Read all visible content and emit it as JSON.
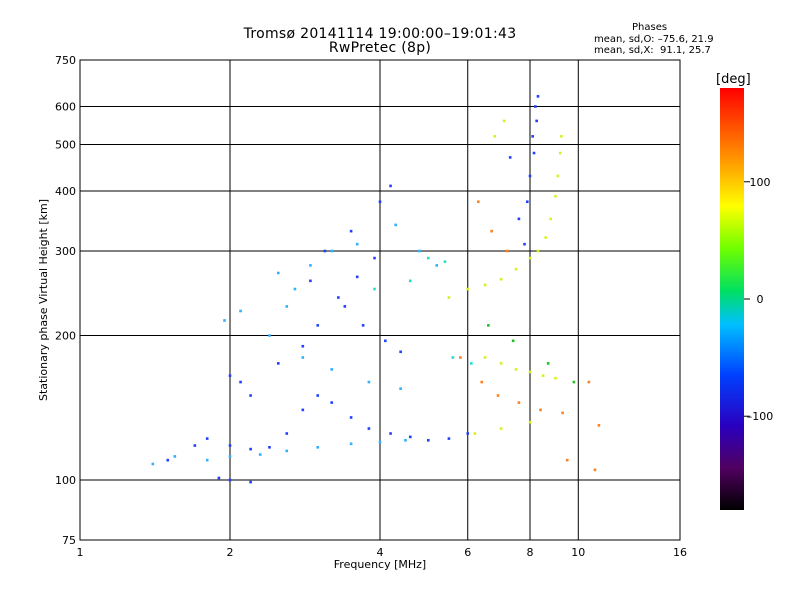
{
  "header": {
    "title_line1": "Tromsø 20141114 19:00:00–19:01:43",
    "title_line2": "RwPretec (8p)"
  },
  "phases_box": {
    "heading": "Phases",
    "line1": "mean, sd,O: –75.6, 21.9",
    "line2": "mean, sd,X:  91.1, 25.7"
  },
  "colorbar": {
    "unit": "[deg]",
    "ticks": [
      {
        "value": 100,
        "label": "100"
      },
      {
        "value": 0,
        "label": "0"
      },
      {
        "value": -100,
        "label": "–100"
      }
    ],
    "range": [
      -180,
      180
    ]
  },
  "chart_data": {
    "type": "scatter",
    "title": "Tromsø 20141114 19:00:00–19:01:43 RwPretec (8p)",
    "xlabel": "Frequency [MHz]",
    "ylabel": "Stationary phase Virtual Height [km]",
    "x_scale": "log",
    "y_scale": "log",
    "xlim": [
      1,
      16
    ],
    "ylim": [
      75,
      750
    ],
    "x_ticks": [
      1,
      2,
      4,
      6,
      8,
      10,
      16
    ],
    "x_tick_labels": [
      "1",
      "2",
      "4",
      "6",
      "8",
      "10",
      "16"
    ],
    "y_ticks": [
      75,
      100,
      200,
      300,
      400,
      500,
      600,
      750
    ],
    "y_tick_labels": [
      "75",
      "100",
      "200",
      "300",
      "400",
      "500",
      "600",
      "750"
    ],
    "grid": true,
    "color_scale": "phase [deg], rainbow from black (-180) through violet, blue, cyan, green, yellow to red (180)",
    "series": [
      {
        "color": "#2040ff",
        "phase": -100,
        "points": [
          [
            1.5,
            110
          ],
          [
            1.7,
            118
          ],
          [
            1.8,
            122
          ],
          [
            2.0,
            118
          ],
          [
            2.2,
            116
          ],
          [
            2.4,
            117
          ],
          [
            2.6,
            125
          ],
          [
            2.8,
            140
          ],
          [
            3.0,
            150
          ],
          [
            3.2,
            145
          ],
          [
            3.5,
            135
          ],
          [
            3.8,
            128
          ],
          [
            4.2,
            125
          ],
          [
            4.6,
            123
          ],
          [
            5.0,
            121
          ],
          [
            5.5,
            122
          ],
          [
            6.0,
            125
          ],
          [
            2.0,
            165
          ],
          [
            2.1,
            160
          ],
          [
            2.2,
            150
          ],
          [
            2.5,
            175
          ],
          [
            2.8,
            190
          ],
          [
            3.0,
            210
          ],
          [
            3.3,
            240
          ],
          [
            3.6,
            265
          ],
          [
            3.9,
            290
          ],
          [
            4.0,
            380
          ],
          [
            4.2,
            410
          ],
          [
            3.5,
            330
          ],
          [
            3.1,
            300
          ],
          [
            2.9,
            260
          ],
          [
            3.4,
            230
          ],
          [
            3.7,
            210
          ],
          [
            4.1,
            195
          ],
          [
            4.4,
            185
          ],
          [
            7.3,
            470
          ],
          [
            7.6,
            350
          ],
          [
            7.8,
            310
          ],
          [
            8.0,
            430
          ],
          [
            8.1,
            520
          ],
          [
            8.2,
            600
          ],
          [
            8.3,
            630
          ],
          [
            8.15,
            480
          ],
          [
            8.25,
            560
          ],
          [
            7.9,
            380
          ],
          [
            2.0,
            100
          ],
          [
            2.2,
            99
          ],
          [
            1.9,
            101
          ]
        ]
      },
      {
        "color": "#30b0ff",
        "phase": -60,
        "points": [
          [
            1.4,
            108
          ],
          [
            1.55,
            112
          ],
          [
            1.8,
            110
          ],
          [
            2.0,
            112
          ],
          [
            2.3,
            113
          ],
          [
            2.6,
            115
          ],
          [
            3.0,
            117
          ],
          [
            3.5,
            119
          ],
          [
            4.0,
            120
          ],
          [
            4.5,
            121
          ],
          [
            2.5,
            270
          ],
          [
            2.7,
            250
          ],
          [
            2.6,
            230
          ],
          [
            2.9,
            280
          ],
          [
            3.2,
            300
          ],
          [
            3.6,
            310
          ],
          [
            4.3,
            340
          ],
          [
            4.8,
            300
          ],
          [
            5.2,
            280
          ],
          [
            2.4,
            200
          ],
          [
            2.8,
            180
          ],
          [
            3.2,
            170
          ],
          [
            3.8,
            160
          ],
          [
            4.4,
            155
          ],
          [
            2.1,
            225
          ],
          [
            1.95,
            215
          ]
        ]
      },
      {
        "color": "#20e0d0",
        "phase": -30,
        "points": [
          [
            5.0,
            290
          ],
          [
            5.4,
            285
          ],
          [
            4.6,
            260
          ],
          [
            3.9,
            250
          ],
          [
            5.6,
            180
          ],
          [
            6.1,
            175
          ]
        ]
      },
      {
        "color": "#d8f020",
        "phase": 90,
        "points": [
          [
            5.5,
            240
          ],
          [
            6.0,
            250
          ],
          [
            6.5,
            255
          ],
          [
            7.0,
            262
          ],
          [
            7.5,
            275
          ],
          [
            8.0,
            290
          ],
          [
            8.3,
            300
          ],
          [
            8.6,
            320
          ],
          [
            8.8,
            350
          ],
          [
            9.0,
            390
          ],
          [
            9.1,
            430
          ],
          [
            9.2,
            480
          ],
          [
            9.25,
            520
          ],
          [
            6.5,
            180
          ],
          [
            7.0,
            175
          ],
          [
            7.5,
            170
          ],
          [
            8.0,
            168
          ],
          [
            8.5,
            165
          ],
          [
            9.0,
            163
          ],
          [
            6.8,
            520
          ],
          [
            7.1,
            560
          ],
          [
            6.2,
            125
          ],
          [
            7.0,
            128
          ],
          [
            8.0,
            132
          ]
        ]
      },
      {
        "color": "#ff8020",
        "phase": 150,
        "points": [
          [
            5.8,
            180
          ],
          [
            6.4,
            160
          ],
          [
            6.9,
            150
          ],
          [
            7.6,
            145
          ],
          [
            8.4,
            140
          ],
          [
            9.3,
            138
          ],
          [
            10.5,
            160
          ],
          [
            11.0,
            130
          ],
          [
            10.8,
            105
          ],
          [
            6.3,
            380
          ],
          [
            6.7,
            330
          ],
          [
            7.2,
            300
          ],
          [
            9.5,
            110
          ]
        ]
      },
      {
        "color": "#20c020",
        "phase": 20,
        "points": [
          [
            6.6,
            210
          ],
          [
            7.4,
            195
          ],
          [
            8.7,
            175
          ],
          [
            9.8,
            160
          ]
        ]
      }
    ]
  }
}
